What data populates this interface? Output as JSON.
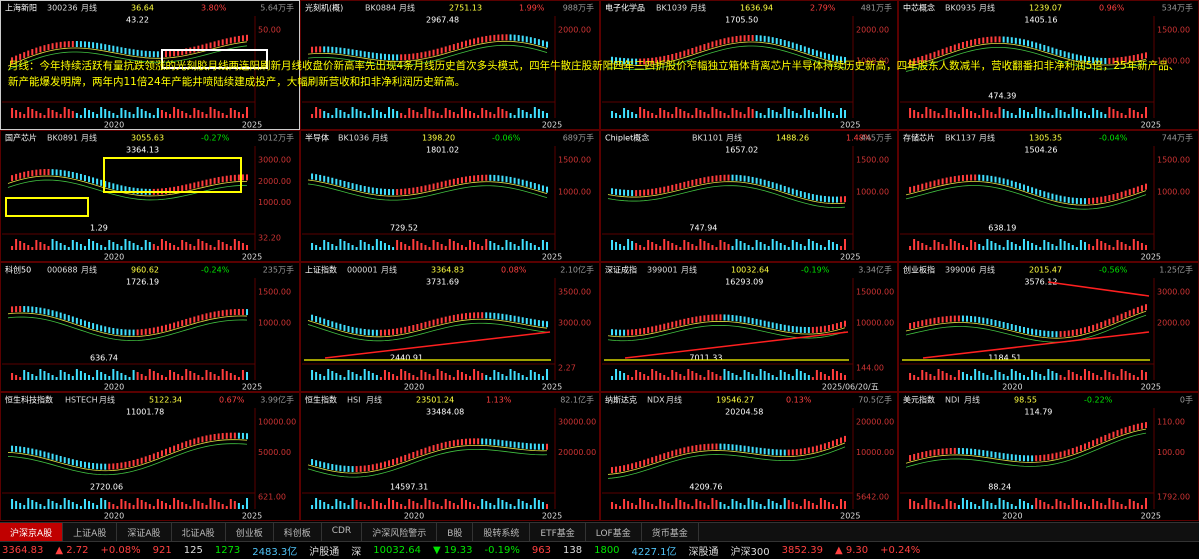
{
  "note_text": "月线：今年持续活跃有量抗跌领涨的光刻胶月线两连阳刷新月线收盘价新高率先出现4条月线历史首次多头模式，四年牛散庄股新阳四年三四折股价窄幅独立箱体背离芯片半导体持续历史新高，四年股东人数减半，营收翻番扣非净利润5倍，25年新产品、新产能爆发明牌，两年内11倍24年产能井喷陆续建成投产，大幅刷新营收和扣非净利润历史新高。",
  "panels": [
    {
      "name": "上海新阳",
      "code": "300236",
      "period": "月线",
      "price": "36.64",
      "change": "3.80%",
      "volume": "5.64万手",
      "yticks": [
        "50.00"
      ],
      "high": "43.22",
      "years": [
        "2020",
        "2025"
      ]
    },
    {
      "name": "光刻机(概)",
      "code": "BK0884",
      "period": "月线",
      "price": "2751.13",
      "change": "1.99%",
      "volume": "988万手",
      "yticks": [
        "2000.00"
      ],
      "high": "2967.48",
      "years": [
        "2025"
      ]
    },
    {
      "name": "电子化学品",
      "code": "BK1039",
      "period": "月线",
      "price": "1636.94",
      "change": "2.79%",
      "volume": "481万手",
      "yticks": [
        "2000.00",
        "1000.00"
      ],
      "high": "1705.50",
      "years": [
        "2025"
      ]
    },
    {
      "name": "中芯概念",
      "code": "BK0935",
      "period": "月线",
      "price": "1239.07",
      "change": "0.96%",
      "volume": "534万手",
      "yticks": [
        "1500.00",
        "1000.00"
      ],
      "high": "1405.16",
      "low": "474.39",
      "years": [
        "2025"
      ]
    },
    {
      "name": "国产芯片",
      "code": "BK0891",
      "period": "月线",
      "price": "3055.63",
      "change": "-0.27%",
      "volume": "3012万手",
      "yticks": [
        "3000.00",
        "2000.00",
        "1000.00"
      ],
      "vol_label": "32.20",
      "high": "3364.13",
      "low": "1.29",
      "years": [
        "2020",
        "2025"
      ]
    },
    {
      "name": "半导体",
      "code": "BK1036",
      "period": "月线",
      "price": "1398.20",
      "change": "-0.06%",
      "volume": "689万手",
      "yticks": [
        "1500.00",
        "1000.00"
      ],
      "high": "1801.02",
      "low": "729.52",
      "years": [
        "2025"
      ]
    },
    {
      "name": "Chiplet概念",
      "code": "BK1101",
      "period": "月线",
      "price": "1488.26",
      "change": "1.48%",
      "volume": "445万手",
      "yticks": [
        "1500.00",
        "1000.00"
      ],
      "high": "1657.02",
      "low": "747.94",
      "years": [
        "2025"
      ]
    },
    {
      "name": "存储芯片",
      "code": "BK1137",
      "period": "月线",
      "price": "1305.35",
      "change": "-0.04%",
      "volume": "744万手",
      "yticks": [
        "1500.00",
        "1000.00"
      ],
      "high": "1504.26",
      "low": "638.19",
      "years": [
        "2025"
      ]
    },
    {
      "name": "科创50",
      "code": "000688",
      "period": "月线",
      "price": "960.62",
      "change": "-0.24%",
      "volume": "235万手",
      "yticks": [
        "1500.00",
        "1000.00"
      ],
      "high": "1726.19",
      "low": "636.74",
      "years": [
        "2020",
        "2025"
      ]
    },
    {
      "name": "上证指数",
      "code": "000001",
      "period": "月线",
      "price": "3364.83",
      "change": "0.08%",
      "volume": "2.10亿手",
      "yticks": [
        "3500.00",
        "3000.00"
      ],
      "vol_label": "2.27",
      "high": "3731.69",
      "low": "2440.91",
      "years": [
        "2020",
        "2025"
      ]
    },
    {
      "name": "深证成指",
      "code": "399001",
      "period": "月线",
      "price": "10032.64",
      "change": "-0.19%",
      "volume": "3.34亿手",
      "yticks": [
        "15000.00",
        "10000.00"
      ],
      "vol_label": "144.00",
      "high": "16293.09",
      "low": "7011.33",
      "years": [
        "2025/06/20/五"
      ]
    },
    {
      "name": "创业板指",
      "code": "399006",
      "period": "月线",
      "price": "2015.47",
      "change": "-0.56%",
      "volume": "1.25亿手",
      "yticks": [
        "3000.00",
        "2000.00"
      ],
      "high": "3576.12",
      "low": "1184.51",
      "years": [
        "2020",
        "2025"
      ]
    },
    {
      "name": "恒生科技指数",
      "code": "HSTECH",
      "period": "月线",
      "price": "5122.34",
      "change": "0.67%",
      "volume": "3.99亿手",
      "yticks": [
        "10000.00",
        "5000.00"
      ],
      "vol_label": "621.00",
      "high": "11001.78",
      "low": "2720.06",
      "years": [
        "2020",
        "2025"
      ]
    },
    {
      "name": "恒生指数",
      "code": "HSI",
      "period": "月线",
      "price": "23501.24",
      "change": "1.13%",
      "volume": "82.1亿手",
      "yticks": [
        "30000.00",
        "20000.00"
      ],
      "high": "33484.08",
      "low": "14597.31",
      "years": [
        "2020",
        "2025"
      ]
    },
    {
      "name": "纳斯达克",
      "code": "NDX",
      "period": "月线",
      "price": "19546.27",
      "change": "0.13%",
      "volume": "70.5亿手",
      "yticks": [
        "20000.00",
        "10000.00"
      ],
      "vol_label": "5642.00",
      "high": "20204.58",
      "low": "4209.76",
      "years": [
        "2025"
      ]
    },
    {
      "name": "美元指数",
      "code": "NDI",
      "period": "月线",
      "price": "98.55",
      "change": "-0.22%",
      "volume": "0手",
      "yticks": [
        "110.00",
        "100.00"
      ],
      "vol_label": "1792.00",
      "high": "114.79",
      "low": "88.24",
      "years": [
        "2020",
        "2025"
      ]
    }
  ],
  "tabs": [
    "沪深京A股",
    "上证A股",
    "深证A股",
    "北证A股",
    "创业板",
    "科创板",
    "CDR",
    "沪深风险警示",
    "B股",
    "股转系统",
    "ETF基金",
    "LOF基金",
    "货币基金"
  ],
  "status": [
    {
      "text": "3364.83",
      "tone": "up"
    },
    {
      "text": "▲ 2.72",
      "tone": "up"
    },
    {
      "text": "+0.08%",
      "tone": "up"
    },
    {
      "text": "921",
      "tone": "up"
    },
    {
      "text": "125",
      "tone": "flat"
    },
    {
      "text": "1273",
      "tone": "down"
    },
    {
      "text": "2483.3亿",
      "tone": "info"
    },
    {
      "text": "沪股通",
      "tone": "flat"
    },
    {
      "text": "深",
      "tone": "flat"
    },
    {
      "text": "10032.64",
      "tone": "down"
    },
    {
      "text": "▼ 19.33",
      "tone": "down"
    },
    {
      "text": "-0.19%",
      "tone": "down"
    },
    {
      "text": "963",
      "tone": "up"
    },
    {
      "text": "138",
      "tone": "flat"
    },
    {
      "text": "1800",
      "tone": "down"
    },
    {
      "text": "4227.1亿",
      "tone": "info"
    },
    {
      "text": "深股通",
      "tone": "flat"
    },
    {
      "text": "沪深300",
      "tone": "flat"
    },
    {
      "text": "3852.39",
      "tone": "up"
    },
    {
      "text": "▲ 9.30",
      "tone": "up"
    },
    {
      "text": "+0.24%",
      "tone": "up"
    }
  ]
}
